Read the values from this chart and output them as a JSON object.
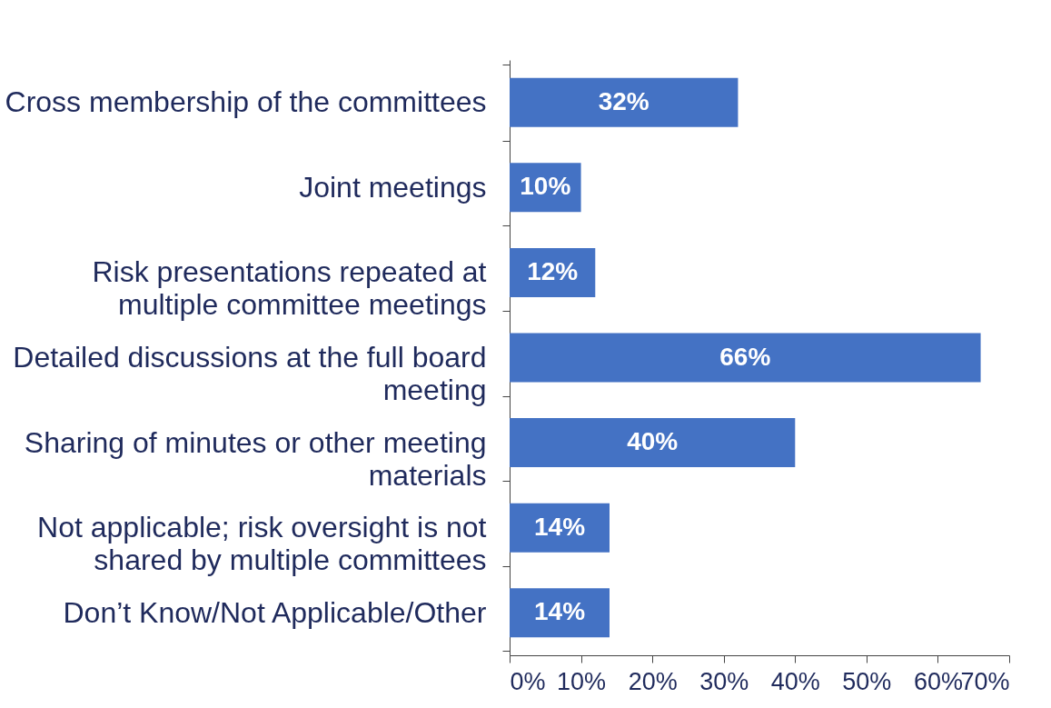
{
  "chart_data": {
    "type": "bar",
    "orientation": "horizontal",
    "categories": [
      "Cross membership of the committees",
      "Joint meetings",
      "Risk presentations repeated at multiple committee meetings",
      "Detailed discussions at the full board meeting",
      "Sharing of minutes or other meeting materials",
      "Not applicable; risk oversight is not shared by multiple committees",
      "Don’t Know/Not Applicable/Other"
    ],
    "values": [
      32,
      10,
      12,
      66,
      40,
      14,
      14
    ],
    "color": "#4472c4",
    "value_labels": [
      "32%",
      "10%",
      "12%",
      "66%",
      "40%",
      "14%",
      "14%"
    ],
    "xlim": [
      0,
      70
    ],
    "xticks": [
      {
        "value": 0,
        "label": "0%"
      },
      {
        "value": 10,
        "label": "10%"
      },
      {
        "value": 20,
        "label": "20%"
      },
      {
        "value": 30,
        "label": "30%"
      },
      {
        "value": 40,
        "label": "40%"
      },
      {
        "value": 50,
        "label": "50%"
      },
      {
        "value": 60,
        "label": "60%"
      },
      {
        "value": 70,
        "label": "70%"
      }
    ],
    "grid": false
  }
}
